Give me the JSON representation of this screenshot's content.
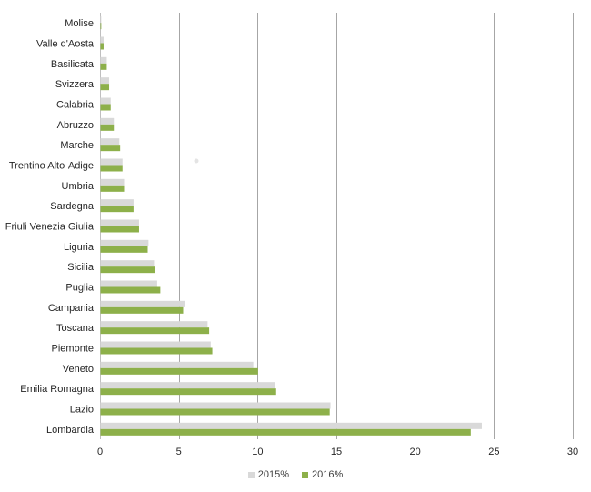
{
  "chart_data": {
    "type": "bar",
    "orientation": "horizontal",
    "categories": [
      "Molise",
      "Valle d'Aosta",
      "Basilicata",
      "Svizzera",
      "Calabria",
      "Abruzzo",
      "Marche",
      "Trentino Alto-Adige",
      "Umbria",
      "Sardegna",
      "Friuli Venezia Giulia",
      "Liguria",
      "Sicilia",
      "Puglia",
      "Campania",
      "Toscana",
      "Piemonte",
      "Veneto",
      "Emilia Romagna",
      "Lazio",
      "Lombardia"
    ],
    "series": [
      {
        "name": "2015%",
        "color": "#d9d9d9",
        "values": [
          0.05,
          0.2,
          0.4,
          0.55,
          0.65,
          0.85,
          1.2,
          1.4,
          1.5,
          2.1,
          2.45,
          3.05,
          3.4,
          3.6,
          5.35,
          6.8,
          7.0,
          9.7,
          11.1,
          14.6,
          24.2
        ]
      },
      {
        "name": "2016%",
        "color": "#8db04a",
        "values": [
          0.05,
          0.2,
          0.4,
          0.55,
          0.65,
          0.85,
          1.25,
          1.4,
          1.5,
          2.1,
          2.45,
          3.0,
          3.45,
          3.8,
          5.25,
          6.9,
          7.1,
          10.0,
          11.15,
          14.55,
          23.5
        ]
      }
    ],
    "xlim": [
      0,
      30
    ],
    "xticks": [
      "0",
      "5",
      "10",
      "15",
      "20",
      "25",
      "30"
    ],
    "grid": true,
    "legend_position": "bottom"
  }
}
